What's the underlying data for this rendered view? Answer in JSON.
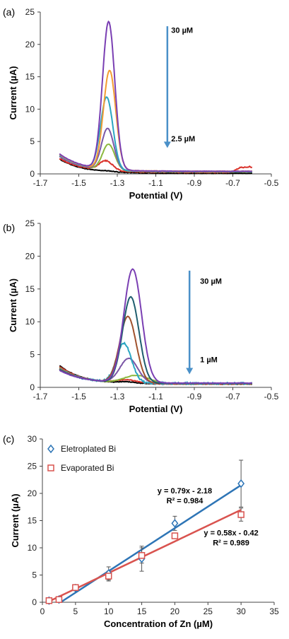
{
  "chart_data": [
    {
      "panel": "(a)",
      "type": "line",
      "xlabel": "Potential (V)",
      "ylabel": "Current (µA)",
      "xlim": [
        -1.7,
        -0.5
      ],
      "ylim": [
        0,
        25
      ],
      "xticks": [
        "-1.7",
        "-1.5",
        "-1.3",
        "-1.1",
        "-0.9",
        "-0.7",
        "-0.5"
      ],
      "yticks": [
        "0",
        "5",
        "10",
        "15",
        "20",
        "25"
      ],
      "grid": false,
      "annotations": [
        {
          "text": "30 µM",
          "x": -1.02,
          "y": 21.8
        },
        {
          "text": "2.5 µM",
          "x": -1.02,
          "y": 5.0
        }
      ],
      "arrow": {
        "x": -1.04,
        "y_from": 22.8,
        "y_to": 4.0,
        "color": "#4a90c8"
      },
      "series": [
        {
          "color": "#000000",
          "start": 2.3,
          "peak_x": -1.35,
          "peak": 0.1,
          "width": 0.05,
          "tail": 0.1,
          "noise": 0.05
        },
        {
          "color": "#d9322b",
          "start": 2.4,
          "peak_x": -1.36,
          "peak": 1.5,
          "width": 0.05,
          "tail": 0.25,
          "noise": 0.08,
          "bump": true
        },
        {
          "color": "#8cb83e",
          "start": 2.8,
          "peak_x": -1.345,
          "peak": 4.0,
          "width": 0.045,
          "tail": 0.3,
          "noise": 0.03
        },
        {
          "color": "#7b56a6",
          "start": 2.7,
          "peak_x": -1.35,
          "peak": 6.4,
          "width": 0.045,
          "tail": 0.35,
          "noise": 0.03
        },
        {
          "color": "#2ba6c2",
          "start": 2.9,
          "peak_x": -1.355,
          "peak": 11.2,
          "width": 0.045,
          "tail": 0.35,
          "noise": 0.03
        },
        {
          "color": "#f39c33",
          "start": 3.0,
          "peak_x": -1.34,
          "peak": 15.3,
          "width": 0.045,
          "tail": 0.4,
          "noise": 0.03
        },
        {
          "color": "#7a3fb3",
          "start": 3.1,
          "peak_x": -1.345,
          "peak": 22.8,
          "width": 0.045,
          "tail": 0.4,
          "noise": 0.03
        }
      ]
    },
    {
      "panel": "(b)",
      "type": "line",
      "xlabel": "Potential (V)",
      "ylabel": "Current (µA)",
      "xlim": [
        -1.7,
        -0.5
      ],
      "ylim": [
        0,
        25
      ],
      "xticks": [
        "-1.7",
        "-1.5",
        "-1.3",
        "-1.1",
        "-0.9",
        "-0.7",
        "-0.5"
      ],
      "yticks": [
        "0",
        "5",
        "10",
        "15",
        "20",
        "25"
      ],
      "grid": false,
      "annotations": [
        {
          "text": "30 µM",
          "x": -0.87,
          "y": 15.8
        },
        {
          "text": "1 µM",
          "x": -0.87,
          "y": 3.8
        }
      ],
      "arrow": {
        "x": -0.925,
        "y_from": 17.8,
        "y_to": 2.0,
        "color": "#4a90c8"
      },
      "series": [
        {
          "color": "#000000",
          "start": 3.3,
          "peak_x": -1.25,
          "peak": 0.2,
          "width": 0.06,
          "tail": 0.5,
          "noise": 0.04
        },
        {
          "color": "#d9322b",
          "start": 3.2,
          "peak_x": -1.25,
          "peak": 0.5,
          "width": 0.08,
          "tail": 0.5,
          "noise": 0.05
        },
        {
          "color": "#8cb83e",
          "start": 3.0,
          "peak_x": -1.2,
          "peak": 1.2,
          "width": 0.09,
          "tail": 0.55,
          "noise": 0.04
        },
        {
          "color": "#7b56a6",
          "start": 2.9,
          "peak_x": -1.24,
          "peak": 3.7,
          "width": 0.065,
          "tail": 0.6,
          "noise": 0.03
        },
        {
          "color": "#2ba6c2",
          "start": 2.8,
          "peak_x": -1.265,
          "peak": 6.0,
          "width": 0.055,
          "tail": 0.6,
          "noise": 0.15
        },
        {
          "color": "#a0522d",
          "start": 2.8,
          "peak_x": -1.245,
          "peak": 10.1,
          "width": 0.06,
          "tail": 0.6,
          "noise": 0.02
        },
        {
          "color": "#1f5e6e",
          "start": 2.7,
          "peak_x": -1.23,
          "peak": 13.1,
          "width": 0.06,
          "tail": 0.6,
          "noise": 0.02
        },
        {
          "color": "#7a3fb3",
          "start": 2.6,
          "peak_x": -1.22,
          "peak": 17.3,
          "width": 0.065,
          "tail": 0.65,
          "noise": 0.02
        }
      ]
    },
    {
      "panel": "(c)",
      "type": "scatter",
      "xlabel": "Concentration of Zn (µM)",
      "ylabel": "Current (µA)",
      "xlim": [
        0,
        35
      ],
      "ylim": [
        0,
        30
      ],
      "xticks": [
        "0",
        "5",
        "10",
        "15",
        "20",
        "25",
        "30",
        "35"
      ],
      "yticks": [
        "0",
        "5",
        "10",
        "15",
        "20",
        "25",
        "30"
      ],
      "grid": false,
      "legend": "top-left",
      "series": [
        {
          "name": "Eletroplated Bi",
          "color": "#2e75b6",
          "marker": "diamond",
          "x": [
            1,
            2.5,
            5,
            10,
            15,
            20,
            30
          ],
          "y": [
            0.3,
            0.5,
            2.6,
            5.3,
            8.0,
            14.5,
            21.8
          ],
          "err": [
            0.2,
            0.2,
            0.5,
            1.2,
            2.3,
            1.3,
            4.3
          ],
          "fit": {
            "slope": 0.79,
            "intercept": -2.18
          },
          "equation": "y = 0.79x - 2.18",
          "r2": "R² = 0.984"
        },
        {
          "name": "Evaporated Bi",
          "color": "#d9534f",
          "marker": "square",
          "x": [
            1,
            2.5,
            5,
            10,
            15,
            20,
            30
          ],
          "y": [
            0.3,
            0.5,
            2.7,
            4.8,
            8.6,
            12.2,
            16.1
          ],
          "err": [
            0.1,
            0.2,
            0.3,
            0.9,
            1.4,
            0.5,
            1.2
          ],
          "fit": {
            "slope": 0.58,
            "intercept": -0.42
          },
          "equation": "y = 0.58x - 0.42",
          "r2": "R² = 0.989"
        }
      ]
    }
  ]
}
